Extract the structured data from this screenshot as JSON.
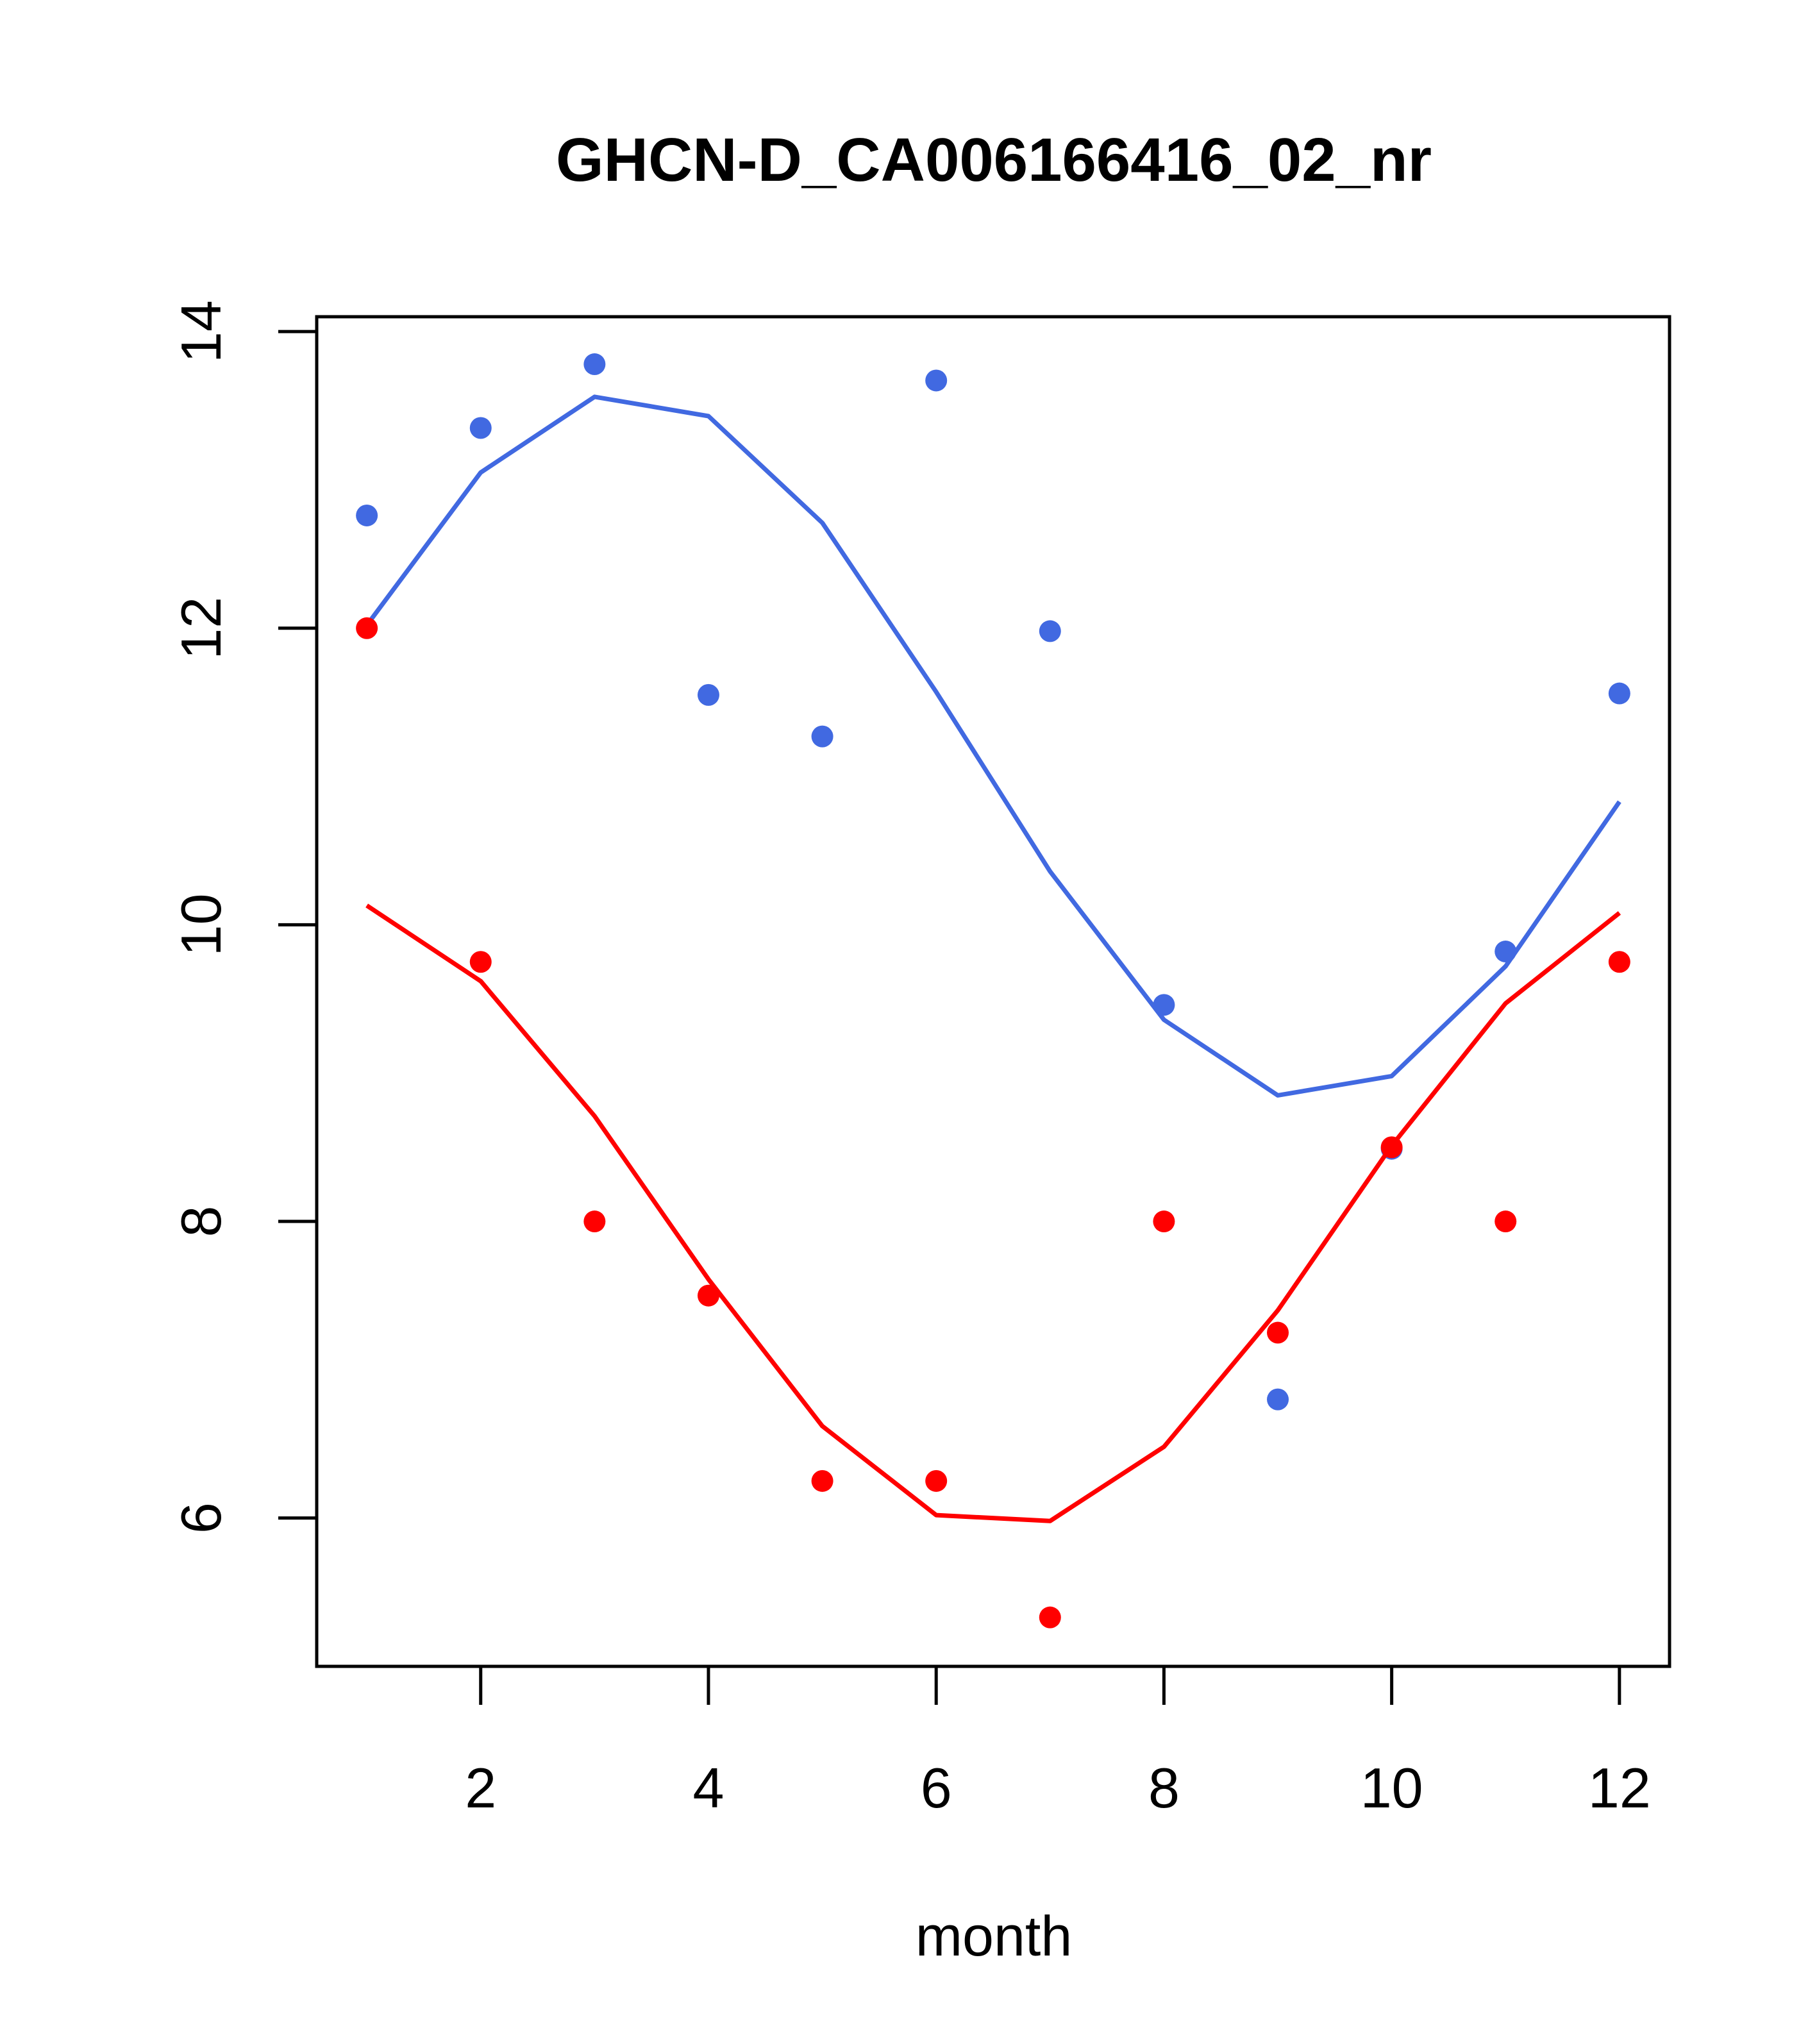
{
  "chart_data": {
    "type": "scatter",
    "title": "GHCN-D_CA006166416_02_nr",
    "xlabel": "month",
    "ylabel": "",
    "xlim": [
      0.56,
      12.44
    ],
    "ylim": [
      5.0,
      14.1
    ],
    "x_ticks": [
      2,
      4,
      6,
      8,
      10,
      12
    ],
    "y_ticks": [
      6,
      8,
      10,
      12,
      14
    ],
    "grid": false,
    "legend": null,
    "series": [
      {
        "color": "#4169E1",
        "points": {
          "x": [
            1,
            2,
            3,
            4,
            5,
            6,
            7,
            8,
            9,
            10,
            11,
            12
          ],
          "y": [
            12.76,
            13.35,
            13.78,
            11.55,
            11.27,
            13.67,
            11.98,
            9.46,
            6.8,
            8.49,
            9.82,
            11.56
          ]
        },
        "fit": {
          "x": [
            1,
            2,
            3,
            4,
            5,
            6,
            7,
            8,
            9,
            10,
            11,
            12
          ],
          "y": [
            12.02,
            13.05,
            13.56,
            13.43,
            12.71,
            11.57,
            10.36,
            9.36,
            8.85,
            8.98,
            9.72,
            10.83
          ]
        }
      },
      {
        "color": "#FF0000",
        "points": {
          "x": [
            1,
            2,
            3,
            4,
            5,
            6,
            7,
            8,
            9,
            10,
            11,
            12
          ],
          "y": [
            12.0,
            9.75,
            8.0,
            7.5,
            6.25,
            6.25,
            5.33,
            8.0,
            7.25,
            8.5,
            8.0,
            9.75
          ]
        },
        "fit": {
          "x": [
            1,
            2,
            3,
            4,
            5,
            6,
            7,
            8,
            9,
            10,
            11,
            12
          ],
          "y": [
            10.13,
            9.62,
            8.71,
            7.61,
            6.62,
            6.02,
            5.98,
            6.48,
            7.4,
            8.51,
            9.47,
            10.08
          ]
        }
      }
    ]
  }
}
